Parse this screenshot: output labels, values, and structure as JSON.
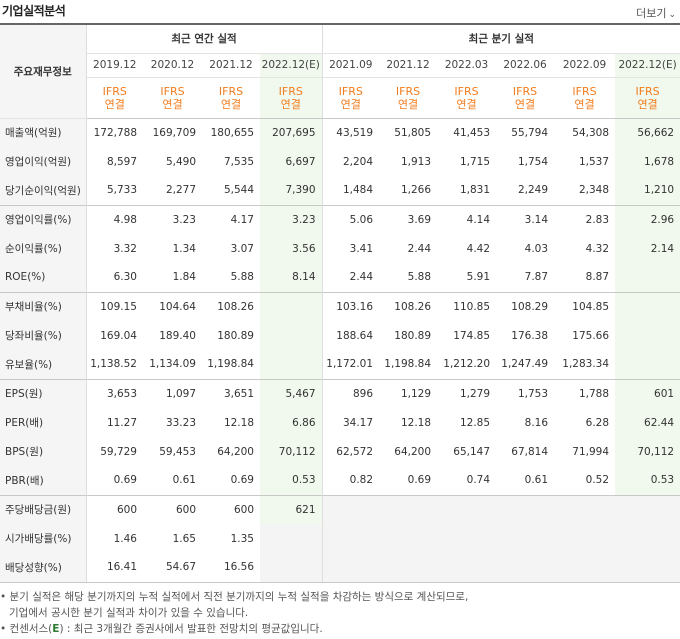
{
  "header": {
    "title": "기업실적분석",
    "more_label": "더보기",
    "more_icon": "chevron-down-icon"
  },
  "table": {
    "row_header_label": "주요재무정보",
    "group_annual": "최근 연간 실적",
    "group_quarter": "최근 분기 실적",
    "periods": [
      "2019.12",
      "2020.12",
      "2021.12",
      "2022.12(E)",
      "2021.09",
      "2021.12",
      "2022.03",
      "2022.06",
      "2022.09",
      "2022.12(E)"
    ],
    "standard_line1": "IFRS",
    "standard_line2": "연결",
    "rows": [
      {
        "label": "매출액(억원)",
        "values": [
          "172,788",
          "169,709",
          "180,655",
          "207,695",
          "43,519",
          "51,805",
          "41,453",
          "55,794",
          "54,308",
          "56,662"
        ]
      },
      {
        "label": "영업이익(억원)",
        "values": [
          "8,597",
          "5,490",
          "7,535",
          "6,697",
          "2,204",
          "1,913",
          "1,715",
          "1,754",
          "1,537",
          "1,678"
        ]
      },
      {
        "label": "당기순이익(억원)",
        "values": [
          "5,733",
          "2,277",
          "5,544",
          "7,390",
          "1,484",
          "1,266",
          "1,831",
          "2,249",
          "2,348",
          "1,210"
        ]
      },
      {
        "label": "영업이익률(%)",
        "values": [
          "4.98",
          "3.23",
          "4.17",
          "3.23",
          "5.06",
          "3.69",
          "4.14",
          "3.14",
          "2.83",
          "2.96"
        ]
      },
      {
        "label": "순이익률(%)",
        "values": [
          "3.32",
          "1.34",
          "3.07",
          "3.56",
          "3.41",
          "2.44",
          "4.42",
          "4.03",
          "4.32",
          "2.14"
        ]
      },
      {
        "label": "ROE(%)",
        "values": [
          "6.30",
          "1.84",
          "5.88",
          "8.14",
          "2.44",
          "5.88",
          "5.91",
          "7.87",
          "8.87",
          ""
        ]
      },
      {
        "label": "부채비율(%)",
        "values": [
          "109.15",
          "104.64",
          "108.26",
          "",
          "103.16",
          "108.26",
          "110.85",
          "108.29",
          "104.85",
          ""
        ]
      },
      {
        "label": "당좌비율(%)",
        "values": [
          "169.04",
          "189.40",
          "180.89",
          "",
          "188.64",
          "180.89",
          "174.85",
          "176.38",
          "175.66",
          ""
        ]
      },
      {
        "label": "유보율(%)",
        "values": [
          "1,138.52",
          "1,134.09",
          "1,198.84",
          "",
          "1,172.01",
          "1,198.84",
          "1,212.20",
          "1,247.49",
          "1,283.34",
          ""
        ]
      },
      {
        "label": "EPS(원)",
        "values": [
          "3,653",
          "1,097",
          "3,651",
          "5,467",
          "896",
          "1,129",
          "1,279",
          "1,753",
          "1,788",
          "601"
        ]
      },
      {
        "label": "PER(배)",
        "values": [
          "11.27",
          "33.23",
          "12.18",
          "6.86",
          "34.17",
          "12.18",
          "12.85",
          "8.16",
          "6.28",
          "62.44"
        ]
      },
      {
        "label": "BPS(원)",
        "values": [
          "59,729",
          "59,453",
          "64,200",
          "70,112",
          "62,572",
          "64,200",
          "65,147",
          "67,814",
          "71,994",
          "70,112"
        ]
      },
      {
        "label": "PBR(배)",
        "values": [
          "0.69",
          "0.61",
          "0.69",
          "0.53",
          "0.82",
          "0.69",
          "0.74",
          "0.61",
          "0.52",
          "0.53"
        ]
      },
      {
        "label": "주당배당금(원)",
        "values": [
          "600",
          "600",
          "600",
          "621",
          "",
          "",
          "",
          "",
          "",
          ""
        ]
      },
      {
        "label": "시가배당률(%)",
        "values": [
          "1.46",
          "1.65",
          "1.35",
          "",
          "",
          "",
          "",
          "",
          "",
          ""
        ]
      },
      {
        "label": "배당성향(%)",
        "values": [
          "16.41",
          "54.67",
          "16.56",
          "",
          "",
          "",
          "",
          "",
          "",
          ""
        ]
      }
    ]
  },
  "notes": {
    "line1": "• 분기 실적은 해당 분기까지의 누적 실적에서 직전 분기까지의 누적 실적을 차감하는 방식으로 계산되므로,",
    "line2": "기업에서 공시한 분기 실적과 차이가 있을 수 있습니다.",
    "line3_prefix": "• 컨센서스(",
    "line3_mark": "E",
    "line3_suffix": ") : 최근 3개월간 증권사에서 발표한 전망치의 평균값입니다."
  },
  "colors": {
    "ifrs": "#f27c1d",
    "estimate_bg": "#f1f8ed",
    "row_header_bg": "#f5f5f5",
    "na_bg": "#f4f4f4"
  }
}
